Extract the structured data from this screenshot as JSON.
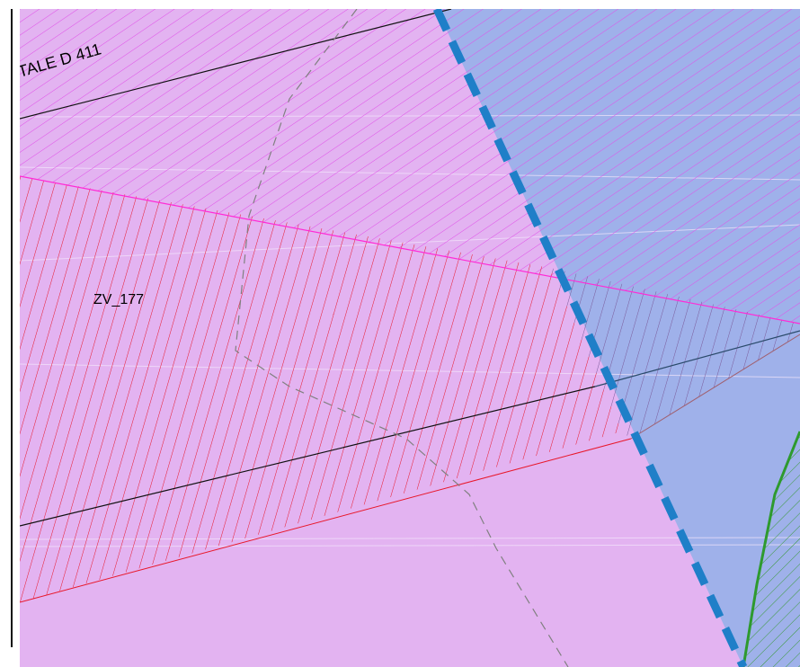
{
  "map": {
    "labels": {
      "road_label": "TALE D 411",
      "zone_label": "ZV_177"
    },
    "colors": {
      "background_zone": "#e3b3f1",
      "blue_zone": "#9fb1ea",
      "magenta_hatch": "#e14fe9",
      "red_hatch": "#e8172a",
      "boundary_dashed": "#1f7fc8",
      "green_boundary": "#2e9a2e",
      "green_hatch": "#3a9a3a",
      "road_line": "#111111",
      "path_dashed": "#808080",
      "magenta_line": "#ff2bd6",
      "frame_line": "#111111"
    }
  }
}
